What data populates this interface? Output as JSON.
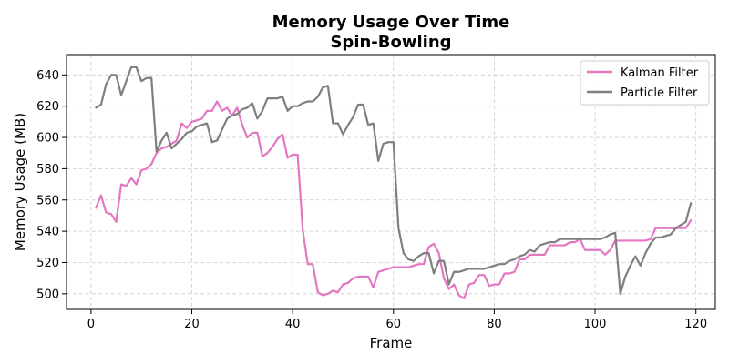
{
  "chart_data": {
    "type": "line",
    "title": "Memory Usage Over Time",
    "subtitle": "Spin-Bowling",
    "xlabel": "Frame",
    "ylabel": "Memory Usage (MB)",
    "xlim": [
      -4.85,
      123.85
    ],
    "ylim": [
      490,
      653
    ],
    "xticks": [
      0,
      20,
      40,
      60,
      80,
      100,
      120
    ],
    "yticks": [
      500,
      520,
      540,
      560,
      580,
      600,
      620,
      640
    ],
    "grid": true,
    "legend_position": "top-right",
    "x_start": 1,
    "series": [
      {
        "name": "Kalman Filter",
        "color": "#e377c2",
        "values": [
          555,
          563,
          552,
          551,
          546,
          570,
          569,
          574,
          570,
          579,
          580,
          583,
          590,
          593,
          594,
          596,
          598,
          609,
          606,
          610,
          611,
          612,
          617,
          617,
          623,
          617,
          619,
          614,
          619,
          608,
          600,
          603,
          603,
          588,
          590,
          594,
          599,
          602,
          587,
          589,
          589,
          541,
          519,
          519,
          501,
          499,
          500,
          502,
          501,
          506,
          507,
          510,
          511,
          511,
          511,
          504,
          514,
          515,
          516,
          517,
          517,
          517,
          517,
          518,
          519,
          519,
          530,
          532,
          526,
          510,
          503,
          506,
          499,
          497,
          506,
          507,
          512,
          512,
          505,
          506,
          506,
          513,
          513,
          514,
          522,
          522,
          525,
          525,
          525,
          525,
          531,
          531,
          531,
          531,
          533,
          533,
          535,
          528,
          528,
          528,
          528,
          525,
          528,
          534,
          534,
          534,
          534,
          534,
          534,
          534,
          535,
          542,
          542,
          542,
          542,
          542,
          542,
          542,
          547
        ]
      },
      {
        "name": "Particle Filter",
        "color": "#7f7f7f",
        "values": [
          619,
          621,
          634,
          640,
          640,
          627,
          636,
          645,
          645,
          636,
          638,
          638,
          591,
          598,
          603,
          593,
          596,
          599,
          603,
          604,
          607,
          608,
          609,
          597,
          598,
          605,
          612,
          614,
          615,
          618,
          619,
          622,
          612,
          617,
          625,
          625,
          625,
          626,
          617,
          620,
          620,
          622,
          623,
          623,
          626,
          632,
          633,
          609,
          609,
          602,
          608,
          613,
          621,
          621,
          608,
          609,
          585,
          596,
          597,
          597,
          542,
          526,
          522,
          521,
          524,
          526,
          526,
          513,
          521,
          521,
          506,
          514,
          514,
          515,
          516,
          516,
          516,
          516,
          517,
          518,
          519,
          519,
          521,
          522,
          524,
          525,
          528,
          527,
          531,
          532,
          533,
          533,
          535,
          535,
          535,
          535,
          535,
          535,
          535,
          535,
          535,
          536,
          538,
          539,
          500,
          511,
          518,
          524,
          518,
          526,
          532,
          536,
          536,
          537,
          538,
          542,
          544,
          546,
          558
        ]
      }
    ]
  }
}
